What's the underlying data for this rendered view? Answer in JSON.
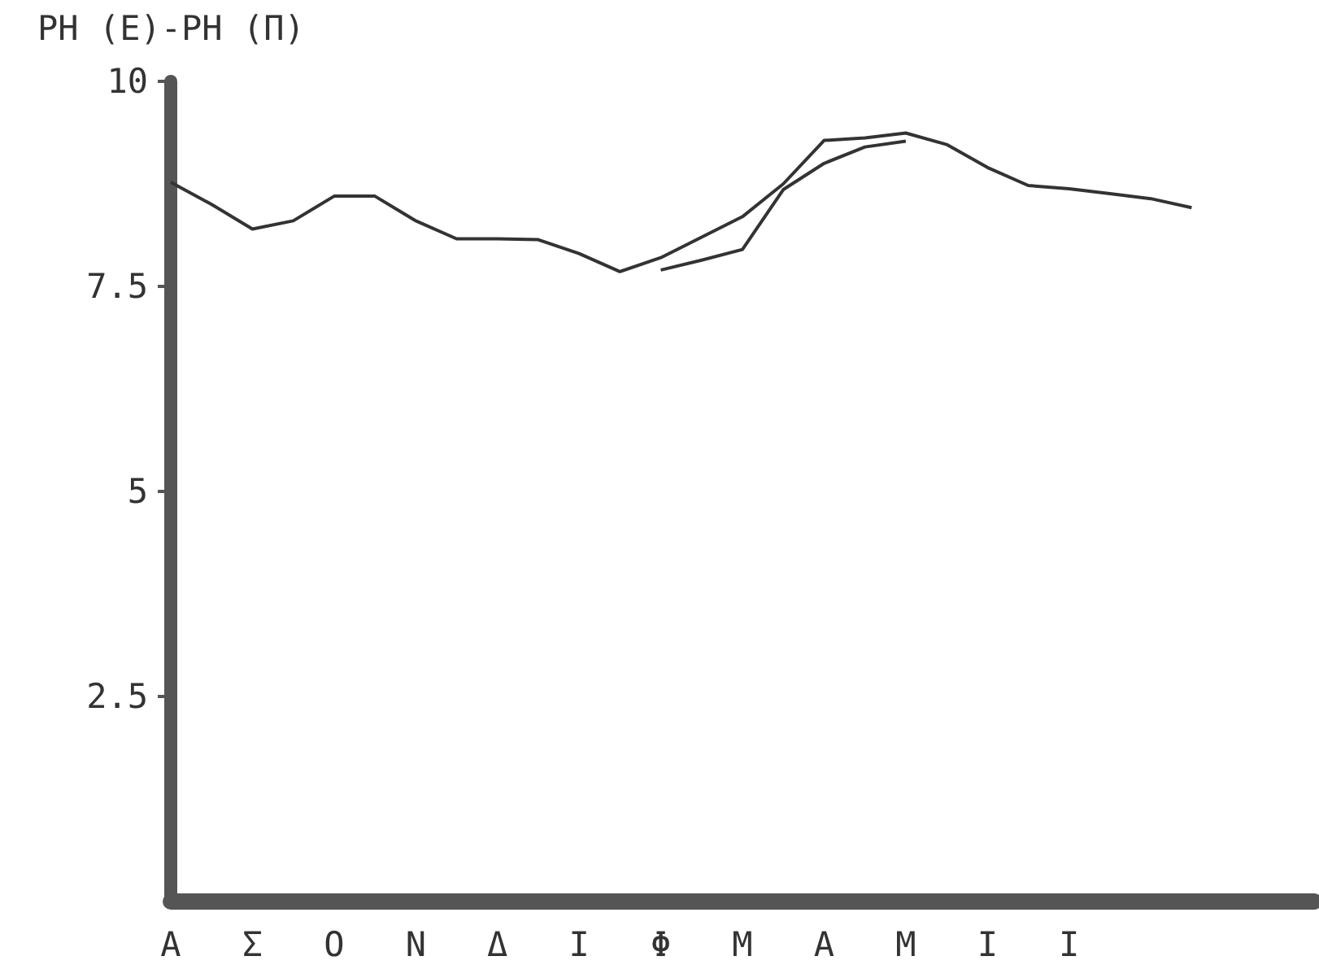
{
  "chart_data": {
    "type": "line",
    "title": "PH (E)-PH (Π)",
    "categories": [
      "Α",
      null,
      "Σ",
      null,
      "Ο",
      null,
      "Ν",
      null,
      "Δ",
      null,
      "Ι",
      null,
      "Φ",
      null,
      "Μ",
      null,
      "Α",
      null,
      "Μ",
      null,
      "Ι",
      null,
      "Ι",
      null,
      null,
      null,
      null,
      null,
      null
    ],
    "ylim": [
      0,
      10
    ],
    "yticks": [
      2.5,
      5,
      7.5,
      10
    ],
    "grid": false,
    "marker": "none",
    "line_style": "solid",
    "series": [
      {
        "color": "#333333",
        "values": [
          8.77,
          8.5,
          8.2,
          8.3,
          8.6,
          8.6,
          8.3,
          8.08,
          8.08,
          8.07,
          7.9,
          7.68,
          7.85,
          8.1,
          8.35,
          8.75,
          9.28,
          9.31,
          9.37,
          9.23,
          8.95,
          8.73,
          8.69,
          8.63,
          8.57,
          8.46,
          null,
          null,
          null
        ]
      },
      {
        "color": "#333333",
        "values": [
          null,
          null,
          null,
          null,
          null,
          null,
          null,
          null,
          null,
          null,
          null,
          null,
          7.7,
          7.82,
          7.95,
          8.68,
          9.0,
          9.2,
          9.27,
          null,
          null,
          null,
          null,
          null,
          null,
          null,
          null,
          null,
          null
        ]
      }
    ]
  }
}
